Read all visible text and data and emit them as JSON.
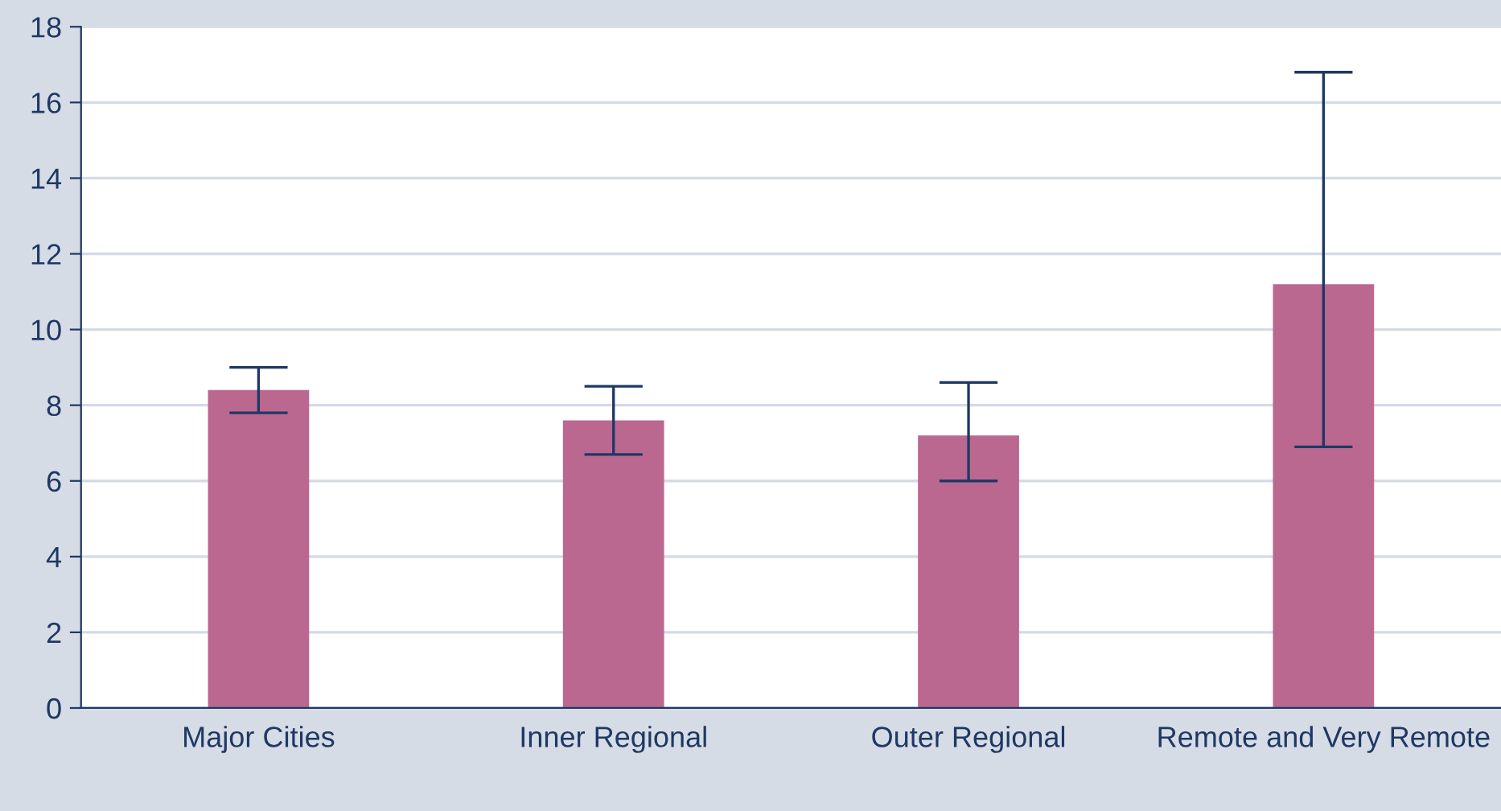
{
  "chart_data": {
    "type": "bar",
    "categories": [
      "Major Cities",
      "Inner Regional",
      "Outer Regional",
      "Remote and Very Remote"
    ],
    "values": [
      8.4,
      7.6,
      7.2,
      11.2
    ],
    "errors": [
      [
        7.8,
        9.0
      ],
      [
        6.7,
        8.5
      ],
      [
        6.0,
        8.6
      ],
      [
        6.9,
        16.8
      ]
    ],
    "color": "#bb6890",
    "ylim": [
      0,
      18
    ],
    "yticks": [
      0,
      2,
      4,
      6,
      8,
      10,
      12,
      14,
      16,
      18
    ],
    "grid": "y"
  }
}
